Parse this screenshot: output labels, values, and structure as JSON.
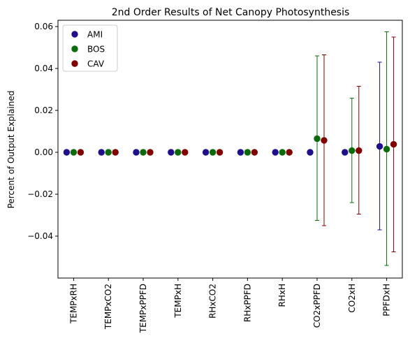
{
  "chart_data": {
    "type": "scatter",
    "title": "2nd Order Results of Net Canopy Photosynthesis",
    "xlabel": "",
    "ylabel": "Percent of Output Explained",
    "categories": [
      "TEMPxRH",
      "TEMPxCO2",
      "TEMPxPPFD",
      "TEMPxH",
      "RHxCO2",
      "RHxPPFD",
      "RHxH",
      "CO2xPPFD",
      "CO2xH",
      "PPFDxH"
    ],
    "ylim": [
      -0.06,
      0.063
    ],
    "yticks": [
      -0.04,
      -0.02,
      0.0,
      0.02,
      0.04,
      0.06
    ],
    "ytick_labels": [
      "−0.04",
      "−0.02",
      "0.00",
      "0.02",
      "0.04",
      "0.06"
    ],
    "legend_position": "top-left",
    "grid": false,
    "series": [
      {
        "name": "AMI",
        "color": "#1f0f8a",
        "values": [
          0.0,
          0.0,
          0.0,
          0.0,
          0.0,
          0.0,
          0.0,
          0.0,
          0.0,
          0.0028
        ],
        "error_low": [
          null,
          null,
          null,
          null,
          null,
          null,
          null,
          null,
          null,
          -0.037
        ],
        "error_high": [
          null,
          null,
          null,
          null,
          null,
          null,
          null,
          null,
          null,
          0.043
        ]
      },
      {
        "name": "BOS",
        "color": "#0a6b0a",
        "values": [
          0.0,
          0.0,
          0.0,
          0.0,
          0.0,
          0.0,
          0.0,
          0.0065,
          0.0008,
          0.0015
        ],
        "error_low": [
          null,
          null,
          null,
          null,
          null,
          null,
          null,
          -0.0325,
          -0.024,
          -0.054
        ],
        "error_high": [
          null,
          null,
          null,
          null,
          null,
          null,
          null,
          0.046,
          0.0258,
          0.0575
        ]
      },
      {
        "name": "CAV",
        "color": "#800000",
        "values": [
          0.0,
          0.0,
          0.0,
          0.0,
          0.0,
          0.0,
          0.0,
          0.0057,
          0.0008,
          0.0038
        ],
        "error_low": [
          null,
          null,
          null,
          null,
          null,
          null,
          null,
          -0.035,
          -0.0295,
          -0.0475
        ],
        "error_high": [
          null,
          null,
          null,
          null,
          null,
          null,
          null,
          0.0465,
          0.0315,
          0.055
        ]
      }
    ]
  }
}
